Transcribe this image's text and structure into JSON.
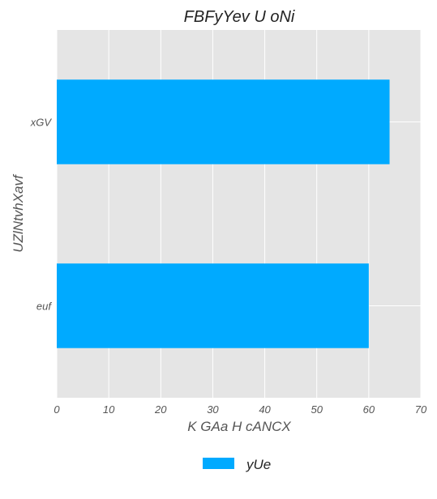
{
  "chart_data": {
    "type": "bar",
    "orientation": "horizontal",
    "title": "FBFyYev U oNi",
    "xlabel": "K GAa H cANCX",
    "ylabel": "UZlNtvhXavf",
    "categories": [
      "xGV",
      "euf"
    ],
    "series": [
      {
        "name": "yUe",
        "values": [
          64,
          60
        ],
        "color": "#00AAFF"
      }
    ],
    "xlim": [
      0,
      70
    ],
    "xticks": [
      "0",
      "10",
      "20",
      "30",
      "40",
      "50",
      "60",
      "70"
    ],
    "grid": true,
    "legend_position": "bottom-center",
    "colors": {
      "plot_background": "#E5E5E5",
      "grid": "#FFFFFF",
      "bar": "#00AAFF"
    }
  }
}
